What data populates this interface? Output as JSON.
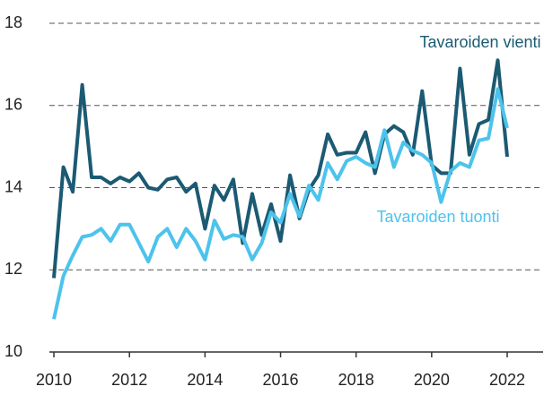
{
  "chart_data": {
    "type": "line",
    "x": [
      2010,
      2010.25,
      2010.5,
      2010.75,
      2011,
      2011.25,
      2011.5,
      2011.75,
      2012,
      2012.25,
      2012.5,
      2012.75,
      2013,
      2013.25,
      2013.5,
      2013.75,
      2014,
      2014.25,
      2014.5,
      2014.75,
      2015,
      2015.25,
      2015.5,
      2015.75,
      2016,
      2016.25,
      2016.5,
      2016.75,
      2017,
      2017.25,
      2017.5,
      2017.75,
      2018,
      2018.25,
      2018.5,
      2018.75,
      2019,
      2019.25,
      2019.5,
      2019.75,
      2020,
      2020.25,
      2020.5,
      2020.75,
      2021,
      2021.25,
      2021.5,
      2021.75,
      2022
    ],
    "series": [
      {
        "name": "Tavaroiden vienti",
        "color": "#1b5a72",
        "values": [
          11.8,
          14.5,
          13.9,
          16.5,
          14.25,
          14.25,
          14.1,
          14.25,
          14.15,
          14.35,
          14.0,
          13.95,
          14.2,
          14.25,
          13.9,
          14.1,
          13.0,
          14.05,
          13.7,
          14.2,
          12.65,
          13.85,
          12.85,
          13.6,
          12.7,
          14.3,
          13.25,
          13.95,
          14.3,
          15.3,
          14.8,
          14.85,
          14.85,
          15.35,
          14.35,
          15.3,
          15.5,
          15.35,
          14.8,
          16.35,
          14.55,
          14.35,
          14.35,
          16.9,
          14.8,
          15.55,
          15.65,
          17.1,
          14.75
        ]
      },
      {
        "name": "Tavaroiden tuonti",
        "color": "#4dc3ec",
        "values": [
          10.8,
          11.85,
          12.35,
          12.8,
          12.85,
          13.0,
          12.7,
          13.1,
          13.1,
          12.65,
          12.2,
          12.8,
          13.0,
          12.55,
          13.0,
          12.7,
          12.25,
          13.2,
          12.75,
          12.85,
          12.8,
          12.25,
          12.65,
          13.4,
          13.15,
          13.85,
          13.3,
          14.05,
          13.7,
          14.6,
          14.2,
          14.65,
          14.75,
          14.6,
          14.5,
          15.4,
          14.5,
          15.1,
          14.9,
          14.8,
          14.6,
          13.65,
          14.4,
          14.6,
          14.5,
          15.15,
          15.2,
          16.4,
          15.45
        ]
      }
    ],
    "xlim": [
      2009.5,
      2022.95
    ],
    "xticks": [
      2010,
      2012,
      2014,
      2016,
      2018,
      2020,
      2022
    ],
    "ylim": [
      10,
      18
    ],
    "yticks": [
      10,
      12,
      14,
      16,
      18
    ],
    "grid": true
  }
}
